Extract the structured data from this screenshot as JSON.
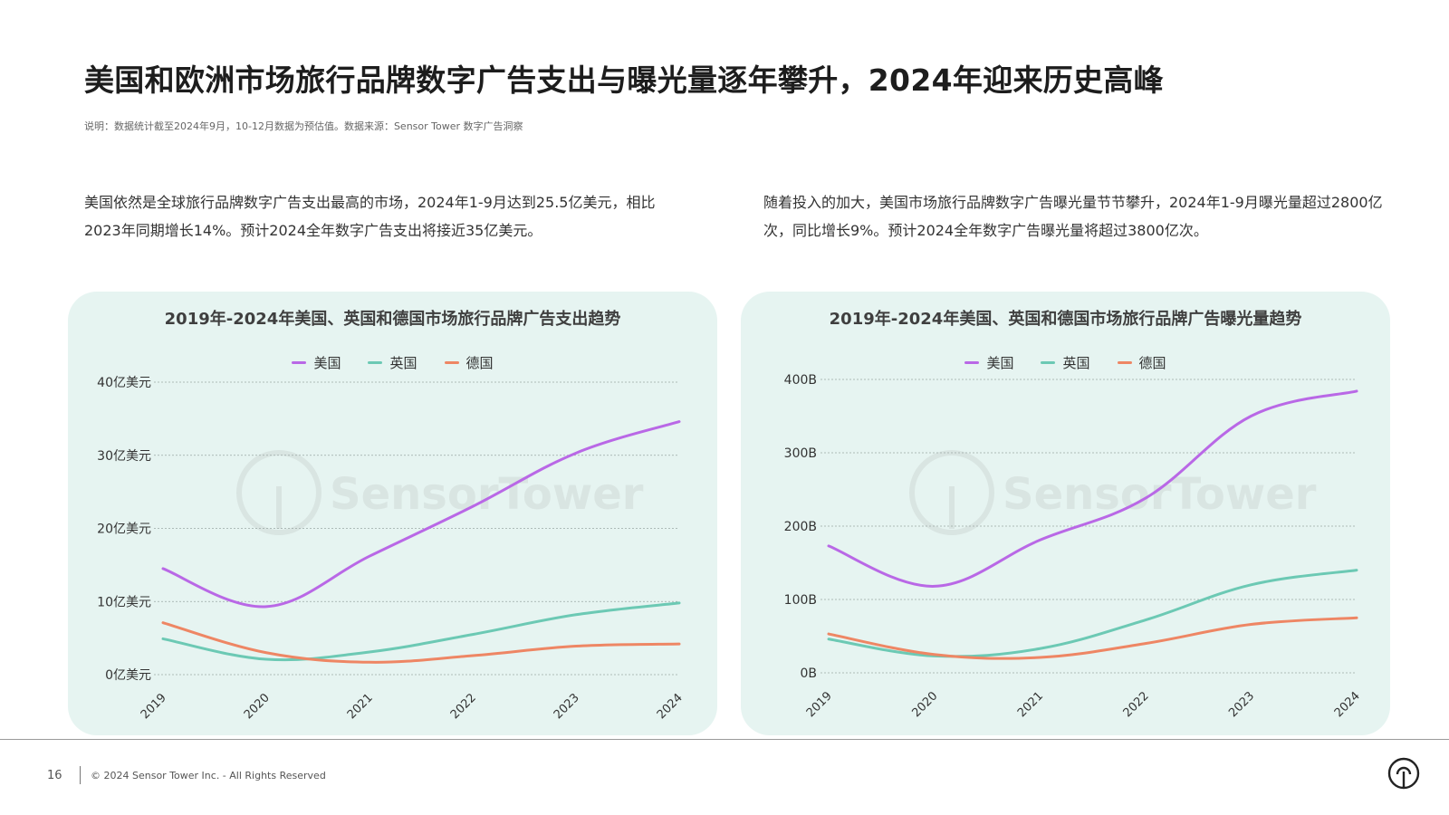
{
  "header": {
    "title": "美国和欧洲市场旅行品牌数字广告支出与曝光量逐年攀升，2024年迎来历史高峰",
    "note": "说明：数据统计截至2024年9月，10-12月数据为预估值。数据来源：Sensor Tower 数字广告洞察"
  },
  "descriptions": {
    "left": "美国依然是全球旅行品牌数字广告支出最高的市场，2024年1-9月达到25.5亿美元，相比2023年同期增长14%。预计2024全年数字广告支出将接近35亿美元。",
    "right": "随着投入的加大，美国市场旅行品牌数字广告曝光量节节攀升，2024年1-9月曝光量超过2800亿次，同比增长9%。预计2024全年数字广告曝光量将超过3800亿次。"
  },
  "watermark": "SensorTower",
  "colors": {
    "us": "#b968e6",
    "uk": "#6cc9b4",
    "de": "#ee8664"
  },
  "chart_data": [
    {
      "type": "line",
      "title": "2019年-2024年美国、英国和德国市场旅行品牌广告支出趋势",
      "categories": [
        "2019",
        "2020",
        "2021",
        "2022",
        "2023",
        "2024"
      ],
      "yticks": [
        "0亿美元",
        "10亿美元",
        "20亿美元",
        "30亿美元",
        "40亿美元"
      ],
      "ylim": [
        0,
        40
      ],
      "grid": true,
      "legend": "top-center",
      "series": [
        {
          "name": "美国",
          "color": "#b968e6",
          "values": [
            14.5,
            9.3,
            16.2,
            23.0,
            30.3,
            34.6
          ]
        },
        {
          "name": "英国",
          "color": "#6cc9b4",
          "values": [
            4.9,
            2.1,
            3.1,
            5.5,
            8.2,
            9.8
          ]
        },
        {
          "name": "德国",
          "color": "#ee8664",
          "values": [
            7.1,
            3.0,
            1.7,
            2.6,
            3.9,
            4.2
          ]
        }
      ]
    },
    {
      "type": "line",
      "title": "2019年-2024年美国、英国和德国市场旅行品牌广告曝光量趋势",
      "categories": [
        "2019",
        "2020",
        "2021",
        "2022",
        "2023",
        "2024"
      ],
      "yticks": [
        "0B",
        "100B",
        "200B",
        "300B",
        "400B"
      ],
      "ylim": [
        0,
        400
      ],
      "grid": true,
      "legend": "top-center",
      "series": [
        {
          "name": "美国",
          "color": "#b968e6",
          "values": [
            173,
            118,
            181,
            238,
            350,
            384
          ]
        },
        {
          "name": "英国",
          "color": "#6cc9b4",
          "values": [
            46,
            23,
            33,
            72,
            120,
            140
          ]
        },
        {
          "name": "德国",
          "color": "#ee8664",
          "values": [
            53,
            25,
            21,
            40,
            66,
            75
          ]
        }
      ]
    }
  ],
  "footer": {
    "page": "16",
    "copyright": "© 2024 Sensor Tower Inc. - All Rights Reserved"
  }
}
